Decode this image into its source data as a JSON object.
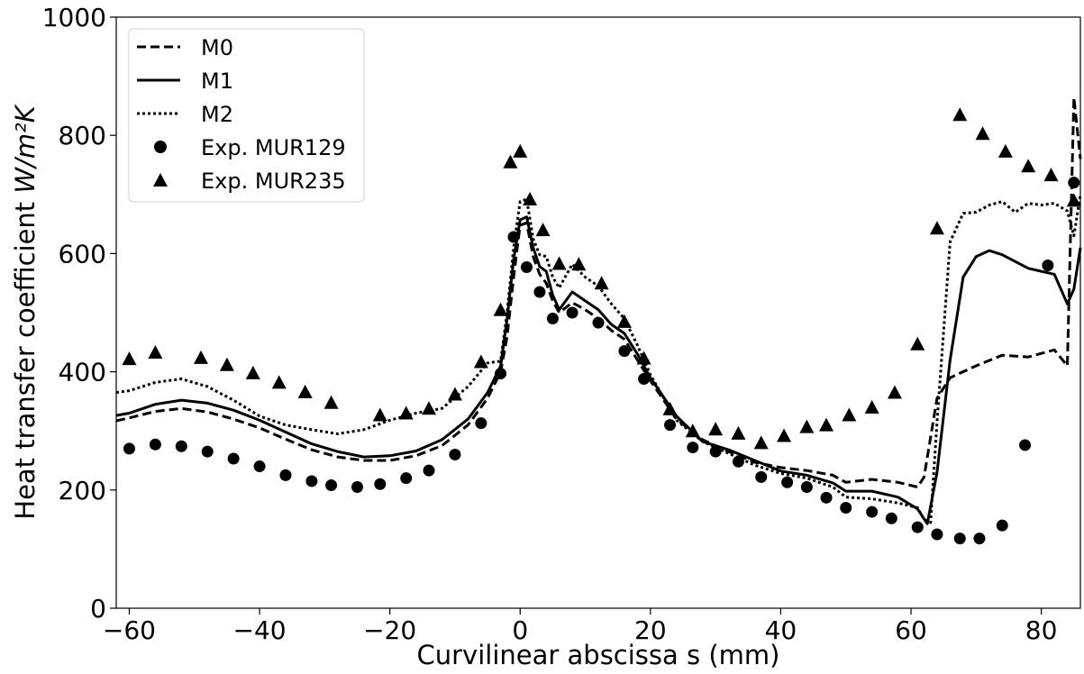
{
  "chart_data": {
    "type": "line",
    "xlabel": "Curvilinear abscissa s (mm)",
    "ylabel_text": "Heat transfer coefficient ",
    "ylabel_unit": "W/m²K",
    "xlim": [
      -62,
      86
    ],
    "ylim": [
      0,
      1000
    ],
    "x_ticks": [
      -60,
      -40,
      -20,
      0,
      20,
      40,
      60,
      80
    ],
    "x_tick_labels": [
      "−60",
      "−40",
      "−20",
      "0",
      "20",
      "40",
      "60",
      "80"
    ],
    "y_ticks": [
      0,
      200,
      400,
      600,
      800,
      1000
    ],
    "y_tick_labels": [
      "0",
      "200",
      "400",
      "600",
      "800",
      "1000"
    ],
    "grid": false,
    "legend_position": "top-left",
    "series": [
      {
        "name": "M0",
        "style": "dashed",
        "x": [
          -62,
          -60,
          -56,
          -52,
          -48,
          -44,
          -40,
          -36,
          -32,
          -28,
          -24,
          -20,
          -16,
          -12,
          -8,
          -5,
          -3,
          -2,
          -1,
          0,
          1,
          2,
          3,
          4,
          5,
          6,
          8,
          10,
          12,
          14,
          16,
          18,
          20,
          24,
          28,
          32,
          36,
          40,
          44,
          48,
          50,
          54,
          58,
          61,
          62,
          64,
          66,
          70,
          74,
          78,
          82,
          84,
          85,
          86
        ],
        "y": [
          317,
          322,
          333,
          338,
          332,
          320,
          305,
          286,
          268,
          256,
          250,
          250,
          258,
          275,
          310,
          355,
          400,
          460,
          560,
          648,
          652,
          595,
          565,
          550,
          520,
          500,
          517,
          505,
          490,
          470,
          455,
          420,
          385,
          320,
          285,
          265,
          247,
          238,
          233,
          225,
          213,
          218,
          213,
          205,
          222,
          355,
          390,
          410,
          428,
          425,
          437,
          410,
          864,
          760
        ]
      },
      {
        "name": "M1",
        "style": "solid",
        "x": [
          -62,
          -60,
          -56,
          -52,
          -48,
          -44,
          -40,
          -36,
          -32,
          -28,
          -24,
          -20,
          -16,
          -12,
          -8,
          -5,
          -3,
          -2,
          -1,
          0,
          1,
          2,
          3,
          4,
          5,
          6,
          8,
          10,
          12,
          14,
          16,
          18,
          20,
          24,
          28,
          32,
          36,
          40,
          44,
          48,
          50,
          54,
          58,
          61,
          62.5,
          64,
          66,
          68,
          70,
          72,
          74,
          78,
          82,
          84,
          85,
          86
        ],
        "y": [
          326,
          330,
          345,
          352,
          347,
          335,
          318,
          298,
          278,
          265,
          256,
          258,
          266,
          285,
          320,
          365,
          410,
          490,
          590,
          657,
          662,
          610,
          578,
          570,
          530,
          505,
          535,
          520,
          505,
          480,
          465,
          430,
          390,
          325,
          282,
          268,
          250,
          232,
          225,
          212,
          198,
          198,
          188,
          168,
          143,
          230,
          420,
          560,
          595,
          605,
          598,
          575,
          565,
          515,
          540,
          610
        ]
      },
      {
        "name": "M2",
        "style": "dotted",
        "x": [
          -62,
          -60,
          -56,
          -52,
          -48,
          -44,
          -40,
          -36,
          -32,
          -28,
          -24,
          -20,
          -16,
          -12,
          -8,
          -5,
          -3,
          -2,
          -1,
          0,
          1,
          2,
          3,
          4,
          5,
          6,
          8,
          10,
          12,
          14,
          16,
          18,
          20,
          24,
          28,
          32,
          36,
          40,
          44,
          48,
          50,
          54,
          58,
          61,
          62,
          63,
          64,
          66,
          68,
          70,
          72,
          74,
          76,
          78,
          80,
          82,
          84,
          85,
          86
        ],
        "y": [
          365,
          368,
          382,
          388,
          375,
          352,
          325,
          310,
          302,
          295,
          302,
          318,
          330,
          338,
          375,
          415,
          418,
          500,
          610,
          688,
          692,
          625,
          598,
          595,
          560,
          542,
          582,
          560,
          545,
          515,
          490,
          445,
          395,
          318,
          282,
          262,
          242,
          228,
          220,
          205,
          188,
          185,
          178,
          170,
          150,
          145,
          315,
          620,
          668,
          670,
          682,
          688,
          670,
          685,
          682,
          685,
          672,
          630,
          700
        ]
      },
      {
        "name": "Exp. MUR129",
        "style": "circle",
        "x": [
          -60,
          -56,
          -52,
          -48,
          -44,
          -40,
          -36,
          -32,
          -29,
          -25,
          -21.5,
          -17.5,
          -14,
          -10,
          -6,
          -3,
          -1,
          1,
          3,
          5,
          8,
          12,
          16,
          19,
          23,
          26.5,
          30,
          33.5,
          37,
          41,
          44,
          47,
          50,
          54,
          57,
          61,
          64,
          67.5,
          70.5,
          74,
          77.5,
          81,
          85
        ],
        "y": [
          270,
          277,
          274,
          265,
          253,
          240,
          225,
          215,
          208,
          205,
          210,
          220,
          233,
          260,
          313,
          397,
          628,
          577,
          535,
          490,
          500,
          483,
          435,
          388,
          310,
          272,
          265,
          248,
          222,
          213,
          205,
          187,
          170,
          163,
          152,
          137,
          125,
          118,
          118,
          140,
          276,
          580,
          720
        ]
      },
      {
        "name": "Exp. MUR235",
        "style": "triangle",
        "x": [
          -60,
          -56,
          -49,
          -45,
          -41,
          -37,
          -33,
          -29,
          -21.5,
          -17.5,
          -14,
          -10,
          -6,
          -3,
          -1.5,
          0,
          1.5,
          3.5,
          6,
          9,
          12.5,
          16,
          19,
          23,
          26.5,
          30,
          33.5,
          37,
          40.5,
          44,
          47,
          50.5,
          54,
          57.5,
          61,
          64,
          67.5,
          71,
          74.5,
          78,
          81.5,
          85
        ],
        "y": [
          422,
          433,
          424,
          412,
          398,
          382,
          366,
          348,
          327,
          330,
          338,
          362,
          417,
          505,
          755,
          773,
          692,
          640,
          583,
          582,
          550,
          485,
          423,
          337,
          300,
          303,
          296,
          280,
          292,
          307,
          310,
          327,
          340,
          365,
          447,
          643,
          835,
          803,
          773,
          748,
          733,
          690
        ]
      }
    ]
  }
}
